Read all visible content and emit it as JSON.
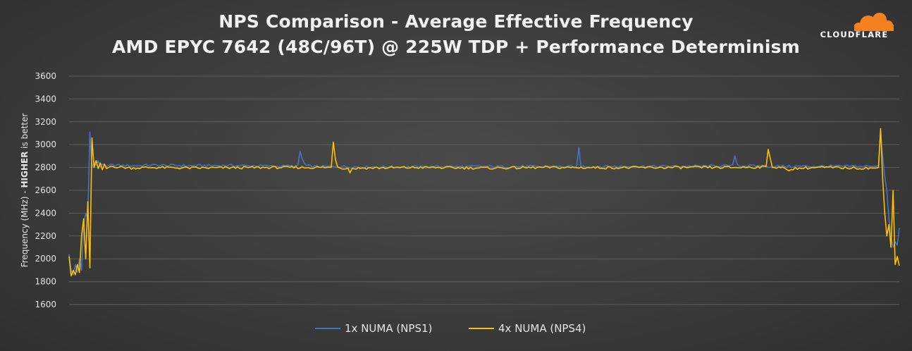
{
  "header": {
    "title_line_1": "NPS Comparison - Average Effective Frequency",
    "title_line_2": "AMD EPYC 7642 (48C/96T) @ 225W TDP + Performance Determinism",
    "logo_text": "CLOUDFLARE",
    "logo_color": "#f48120"
  },
  "colors": {
    "nps1": "#4472c4",
    "nps4": "#ffc000",
    "grid": "#5d5d5d",
    "text": "#e6e6e6"
  },
  "chart_data": {
    "type": "line",
    "title": "NPS Comparison - Average Effective Frequency",
    "subtitle": "AMD EPYC 7642 (48C/96T) @ 225W TDP + Performance Determinism",
    "xlabel": "",
    "ylabel_prefix": "Frequency (MHz) - ",
    "ylabel_bold": "HIGHER",
    "ylabel_suffix": " is better",
    "ylim": [
      1600,
      3600
    ],
    "yticks": [
      1600,
      1800,
      2000,
      2200,
      2400,
      2600,
      2800,
      3000,
      3200,
      3400,
      3600
    ],
    "grid": true,
    "legend_position": "bottom",
    "x_points": 400,
    "series": [
      {
        "name": "1x NUMA (NPS1)",
        "color": "#4472c4",
        "keypoints": [
          [
            0,
            2040
          ],
          [
            1,
            1900
          ],
          [
            2,
            1860
          ],
          [
            3,
            1950
          ],
          [
            4,
            1880
          ],
          [
            5,
            2000
          ],
          [
            6,
            1900
          ],
          [
            7,
            2300
          ],
          [
            8,
            2400
          ],
          [
            9,
            2350
          ],
          [
            10,
            3110
          ],
          [
            11,
            2800
          ],
          [
            12,
            2850
          ],
          [
            13,
            2820
          ],
          [
            14,
            2860
          ],
          [
            15,
            2800
          ],
          [
            16,
            2830
          ],
          [
            18,
            2810
          ],
          [
            20,
            2820
          ],
          [
            30,
            2815
          ],
          [
            40,
            2820
          ],
          [
            60,
            2815
          ],
          [
            80,
            2818
          ],
          [
            96,
            2812
          ],
          [
            100,
            2810
          ],
          [
            104,
            2815
          ],
          [
            108,
            2812
          ],
          [
            110,
            2812
          ],
          [
            111,
            2940
          ],
          [
            112,
            2880
          ],
          [
            113,
            2835
          ],
          [
            114,
            2815
          ],
          [
            118,
            2808
          ],
          [
            140,
            2805
          ],
          [
            170,
            2805
          ],
          [
            200,
            2808
          ],
          [
            230,
            2808
          ],
          [
            244,
            2805
          ],
          [
            245,
            2975
          ],
          [
            246,
            2810
          ],
          [
            260,
            2808
          ],
          [
            300,
            2810
          ],
          [
            319,
            2815
          ],
          [
            320,
            2910
          ],
          [
            321,
            2830
          ],
          [
            322,
            2815
          ],
          [
            340,
            2810
          ],
          [
            360,
            2810
          ],
          [
            380,
            2810
          ],
          [
            388,
            2810
          ],
          [
            389,
            2820
          ],
          [
            390,
            3130
          ],
          [
            391,
            2900
          ],
          [
            392,
            2720
          ],
          [
            393,
            2600
          ],
          [
            394,
            2350
          ],
          [
            395,
            2200
          ],
          [
            396,
            2100
          ],
          [
            397,
            2150
          ],
          [
            398,
            2120
          ],
          [
            399,
            2270
          ]
        ]
      },
      {
        "name": "4x NUMA (NPS4)",
        "color": "#ffc000",
        "keypoints": [
          [
            0,
            2020
          ],
          [
            1,
            1850
          ],
          [
            2,
            1900
          ],
          [
            3,
            1860
          ],
          [
            4,
            1950
          ],
          [
            5,
            1880
          ],
          [
            6,
            2200
          ],
          [
            7,
            2350
          ],
          [
            8,
            2000
          ],
          [
            9,
            2500
          ],
          [
            10,
            1920
          ],
          [
            11,
            3060
          ],
          [
            12,
            2800
          ],
          [
            13,
            2860
          ],
          [
            14,
            2790
          ],
          [
            15,
            2840
          ],
          [
            16,
            2780
          ],
          [
            17,
            2830
          ],
          [
            18,
            2790
          ],
          [
            20,
            2810
          ],
          [
            30,
            2795
          ],
          [
            40,
            2800
          ],
          [
            60,
            2795
          ],
          [
            80,
            2798
          ],
          [
            100,
            2800
          ],
          [
            126,
            2800
          ],
          [
            127,
            3025
          ],
          [
            128,
            2880
          ],
          [
            129,
            2810
          ],
          [
            130,
            2800
          ],
          [
            134,
            2790
          ],
          [
            135,
            2760
          ],
          [
            136,
            2790
          ],
          [
            140,
            2795
          ],
          [
            170,
            2800
          ],
          [
            200,
            2795
          ],
          [
            230,
            2800
          ],
          [
            260,
            2798
          ],
          [
            290,
            2800
          ],
          [
            320,
            2800
          ],
          [
            335,
            2805
          ],
          [
            336,
            2965
          ],
          [
            337,
            2880
          ],
          [
            338,
            2810
          ],
          [
            339,
            2800
          ],
          [
            345,
            2790
          ],
          [
            346,
            2765
          ],
          [
            347,
            2790
          ],
          [
            360,
            2800
          ],
          [
            380,
            2795
          ],
          [
            388,
            2795
          ],
          [
            389,
            2800
          ],
          [
            390,
            3140
          ],
          [
            391,
            2700
          ],
          [
            392,
            2400
          ],
          [
            393,
            2200
          ],
          [
            394,
            2300
          ],
          [
            395,
            2100
          ],
          [
            396,
            2600
          ],
          [
            397,
            1950
          ],
          [
            398,
            2020
          ],
          [
            399,
            1940
          ]
        ]
      }
    ]
  }
}
